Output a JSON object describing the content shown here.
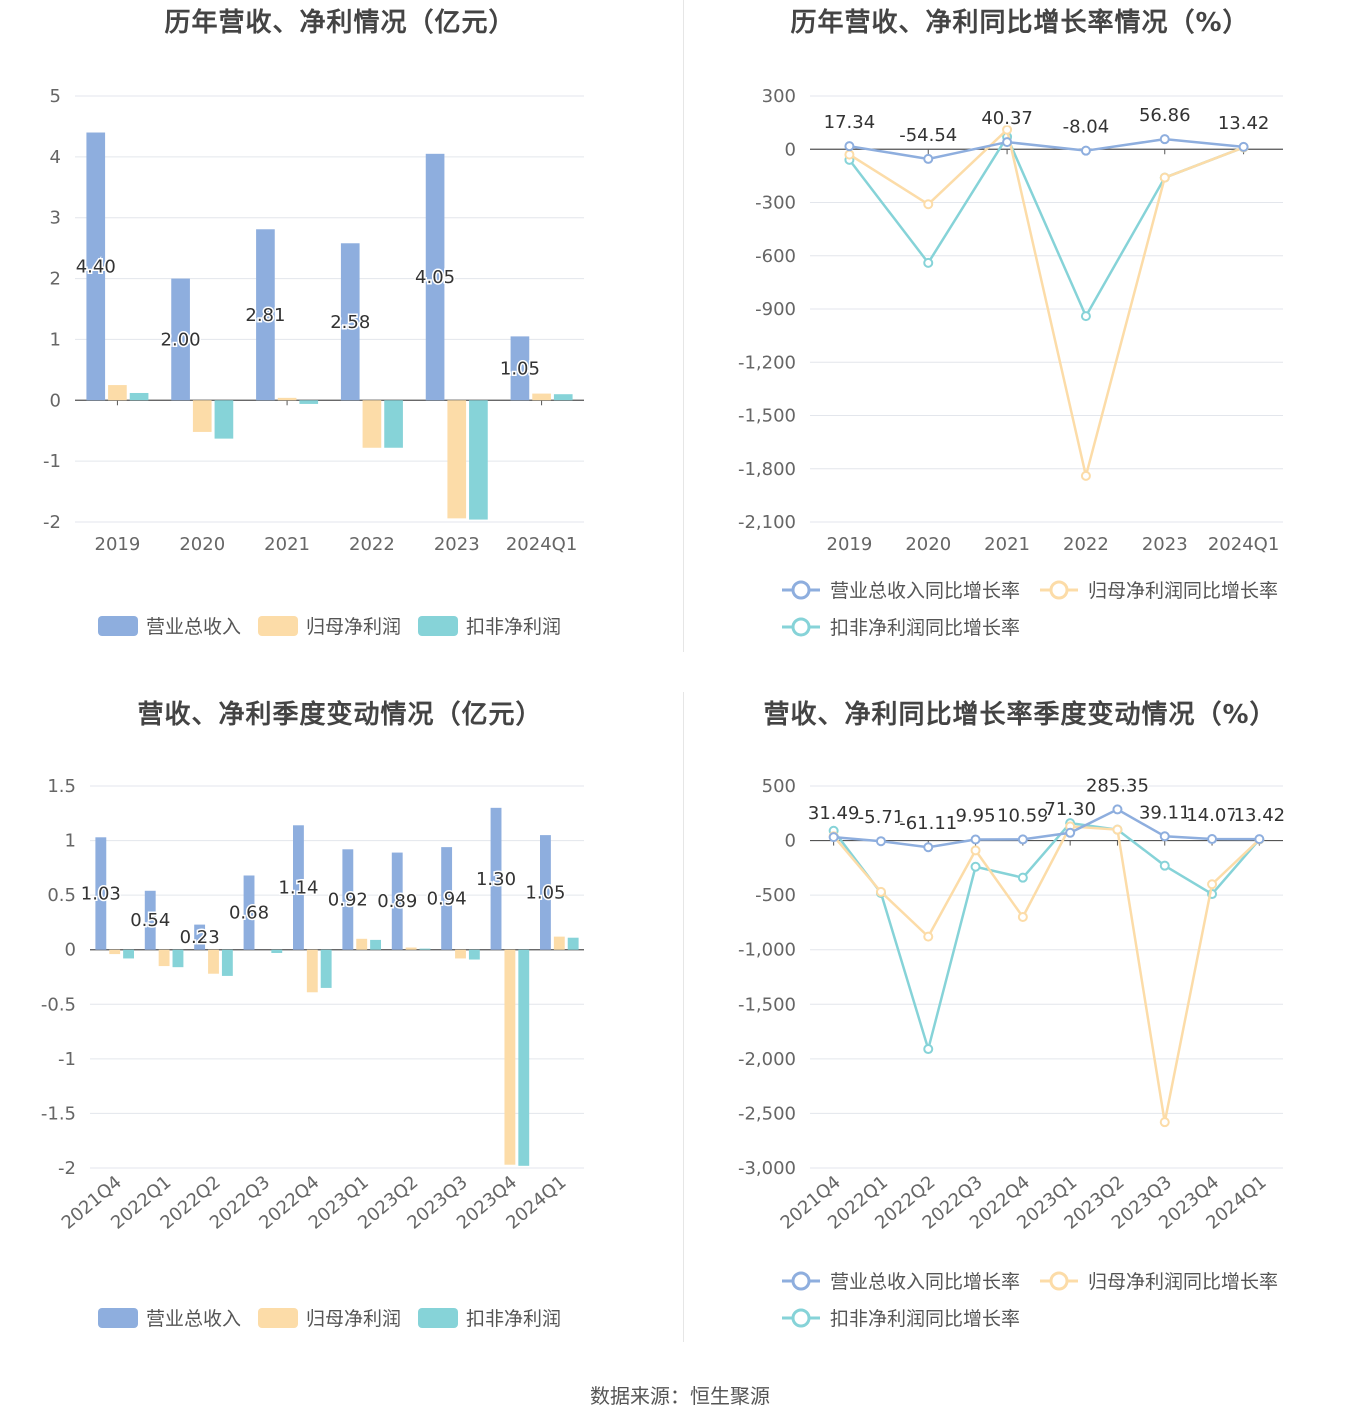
{
  "source_text": "数据来源：恒生聚源",
  "colors": {
    "revenue": "#8eaede",
    "net_profit": "#fcdca8",
    "deducted_profit": "#86d3d8",
    "grid": "#e3e6ec",
    "axis": "#555555"
  },
  "chart_data": [
    {
      "id": "annual-bar",
      "type": "bar",
      "title": "历年营收、净利情况（亿元）",
      "categories": [
        "2019",
        "2020",
        "2021",
        "2022",
        "2023",
        "2024Q1"
      ],
      "ylim": [
        -2,
        5
      ],
      "yticks": [
        "5",
        "4",
        "3",
        "2",
        "1",
        "0",
        "-1",
        "-2"
      ],
      "ytick_values": [
        5,
        4,
        3,
        2,
        1,
        0,
        -1,
        -2
      ],
      "rotate_x": false,
      "series": [
        {
          "name": "营业总收入",
          "values": [
            4.4,
            2.0,
            2.81,
            2.58,
            4.05,
            1.05
          ],
          "labels": [
            "4.40",
            "2.00",
            "2.81",
            "2.58",
            "4.05",
            "1.05"
          ]
        },
        {
          "name": "归母净利润",
          "values": [
            0.25,
            -0.52,
            0.04,
            -0.78,
            -1.94,
            0.11
          ]
        },
        {
          "name": "扣非净利润",
          "values": [
            0.12,
            -0.63,
            -0.06,
            -0.78,
            -1.96,
            0.1
          ]
        }
      ]
    },
    {
      "id": "annual-line",
      "type": "line",
      "title": "历年营收、净利同比增长率情况（%）",
      "categories": [
        "2019",
        "2020",
        "2021",
        "2022",
        "2023",
        "2024Q1"
      ],
      "ylim": [
        -2100,
        300
      ],
      "yticks": [
        "300",
        "0",
        "-300",
        "-600",
        "-900",
        "-1,200",
        "-1,500",
        "-1,800",
        "-2,100"
      ],
      "ytick_values": [
        300,
        0,
        -300,
        -600,
        -900,
        -1200,
        -1500,
        -1800,
        -2100
      ],
      "rotate_x": false,
      "series": [
        {
          "name": "营业总收入同比增长率",
          "values": [
            17.34,
            -54.54,
            40.37,
            -8.04,
            56.86,
            13.42
          ],
          "labels": [
            "17.34",
            "-54.54",
            "40.37",
            "-8.04",
            "56.86",
            "13.42"
          ]
        },
        {
          "name": "归母净利润同比增长率",
          "values": [
            -30,
            -310,
            110,
            -1840,
            -160,
            10
          ]
        },
        {
          "name": "扣非净利润同比增长率",
          "values": [
            -60,
            -640,
            70,
            -940,
            -160,
            10
          ]
        }
      ]
    },
    {
      "id": "quarter-bar",
      "type": "bar",
      "title": "营收、净利季度变动情况（亿元）",
      "categories": [
        "2021Q4",
        "2022Q1",
        "2022Q2",
        "2022Q3",
        "2022Q4",
        "2023Q1",
        "2023Q2",
        "2023Q3",
        "2023Q4",
        "2024Q1"
      ],
      "ylim": [
        -2,
        1.5
      ],
      "yticks": [
        "1.5",
        "1",
        "0.5",
        "0",
        "-0.5",
        "-1",
        "-1.5",
        "-2"
      ],
      "ytick_values": [
        1.5,
        1,
        0.5,
        0,
        -0.5,
        -1,
        -1.5,
        -2
      ],
      "rotate_x": true,
      "series": [
        {
          "name": "营业总收入",
          "values": [
            1.03,
            0.54,
            0.23,
            0.68,
            1.14,
            0.92,
            0.89,
            0.94,
            1.3,
            1.05
          ],
          "labels": [
            "1.03",
            "0.54",
            "0.23",
            "0.68",
            "1.14",
            "0.92",
            "0.89",
            "0.94",
            "1.30",
            "1.05"
          ]
        },
        {
          "name": "归母净利润",
          "values": [
            -0.04,
            -0.15,
            -0.22,
            0.0,
            -0.39,
            0.1,
            0.02,
            -0.08,
            -1.97,
            0.12
          ]
        },
        {
          "name": "扣非净利润",
          "values": [
            -0.08,
            -0.16,
            -0.24,
            -0.03,
            -0.35,
            0.09,
            0.01,
            -0.09,
            -1.98,
            0.11
          ]
        }
      ]
    },
    {
      "id": "quarter-line",
      "type": "line",
      "title": "营收、净利同比增长率季度变动情况（%）",
      "categories": [
        "2021Q4",
        "2022Q1",
        "2022Q2",
        "2022Q3",
        "2022Q4",
        "2023Q1",
        "2023Q2",
        "2023Q3",
        "2023Q4",
        "2024Q1"
      ],
      "ylim": [
        -3000,
        500
      ],
      "yticks": [
        "500",
        "0",
        "-500",
        "-1,000",
        "-1,500",
        "-2,000",
        "-2,500",
        "-3,000"
      ],
      "ytick_values": [
        500,
        0,
        -500,
        -1000,
        -1500,
        -2000,
        -2500,
        -3000
      ],
      "rotate_x": true,
      "series": [
        {
          "name": "营业总收入同比增长率",
          "values": [
            31.49,
            -5.71,
            -61.11,
            9.95,
            10.59,
            71.3,
            285.35,
            39.11,
            14.07,
            13.42
          ],
          "labels": [
            "31.49",
            "-5.71",
            "-61.11",
            "9.95",
            "10.59",
            "71.30",
            "285.35",
            "39.11",
            "14.07",
            "13.42"
          ]
        },
        {
          "name": "归母净利润同比增长率",
          "values": [
            40,
            -470,
            -880,
            -90,
            -700,
            130,
            100,
            -2580,
            -400,
            10
          ]
        },
        {
          "name": "扣非净利润同比增长率",
          "values": [
            90,
            -480,
            -1910,
            -240,
            -340,
            160,
            100,
            -230,
            -490,
            10
          ]
        }
      ]
    }
  ]
}
